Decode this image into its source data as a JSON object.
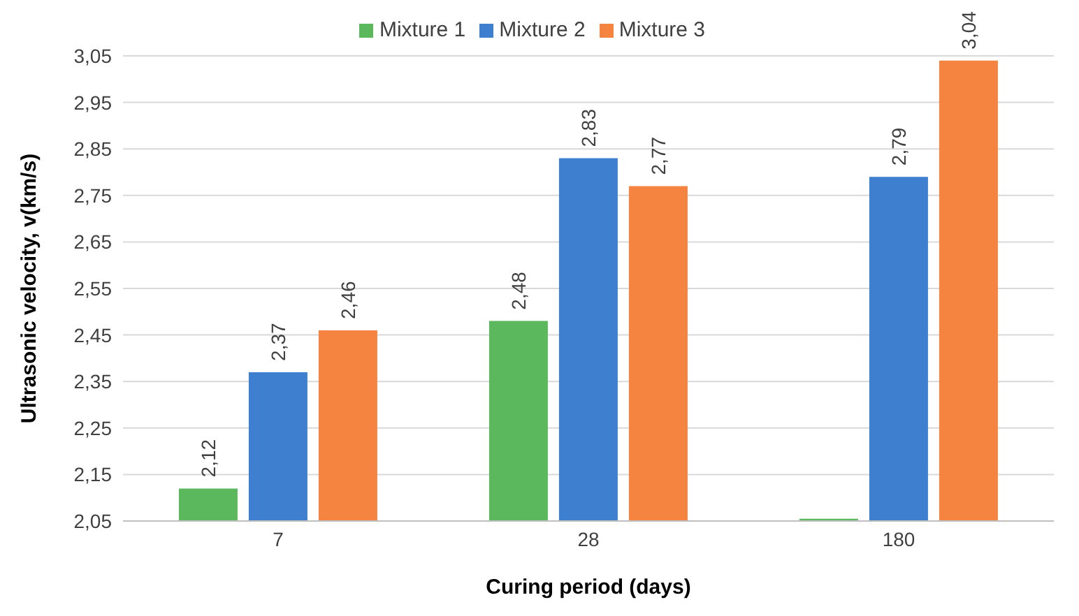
{
  "chart_data": {
    "type": "bar",
    "xlabel": "Curing period (days)",
    "ylabel": "Ultrasonic velocity, v(km/s)",
    "categories": [
      "7",
      "28",
      "180"
    ],
    "series": [
      {
        "name": "Mixture 1",
        "color": "#5cb85c",
        "values": [
          2.12,
          2.48,
          2.055
        ],
        "value_labels": [
          "2,12",
          "2,48",
          null
        ]
      },
      {
        "name": "Mixture 2",
        "color": "#3f7fd0",
        "values": [
          2.37,
          2.83,
          2.79
        ],
        "value_labels": [
          "2,37",
          "2,83",
          "2,79"
        ]
      },
      {
        "name": "Mixture 3",
        "color": "#f4843f",
        "values": [
          2.46,
          2.77,
          3.04
        ],
        "value_labels": [
          "2,46",
          "2,77",
          "3,04"
        ]
      }
    ],
    "ylim": [
      2.05,
      3.05
    ],
    "yticks": [
      {
        "value": 2.05,
        "label": "2,05"
      },
      {
        "value": 2.15,
        "label": "2,15"
      },
      {
        "value": 2.25,
        "label": "2,25"
      },
      {
        "value": 2.35,
        "label": "2,35"
      },
      {
        "value": 2.45,
        "label": "2,45"
      },
      {
        "value": 2.55,
        "label": "2,55"
      },
      {
        "value": 2.65,
        "label": "2,65"
      },
      {
        "value": 2.75,
        "label": "2,75"
      },
      {
        "value": 2.85,
        "label": "2,85"
      },
      {
        "value": 2.95,
        "label": "2,95"
      },
      {
        "value": 3.05,
        "label": "3,05"
      }
    ],
    "grid": "y",
    "legend": "top"
  }
}
